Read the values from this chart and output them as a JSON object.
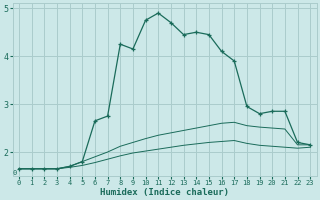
{
  "xlabel": "Humidex (Indice chaleur)",
  "background_color": "#cce8e8",
  "grid_color": "#aacccc",
  "line_color": "#1a6b5a",
  "x_values": [
    0,
    1,
    2,
    3,
    4,
    5,
    6,
    7,
    8,
    9,
    10,
    11,
    12,
    13,
    14,
    15,
    16,
    17,
    18,
    19,
    20,
    21,
    22,
    23
  ],
  "line1_y": [
    1.65,
    1.65,
    1.65,
    1.65,
    1.7,
    1.8,
    2.65,
    2.75,
    4.25,
    4.15,
    4.75,
    4.9,
    4.7,
    4.45,
    4.5,
    4.45,
    4.1,
    3.9,
    2.95,
    2.8,
    2.85,
    2.85,
    2.2,
    2.15
  ],
  "line2_y": [
    1.65,
    1.65,
    1.65,
    1.65,
    1.7,
    1.8,
    1.9,
    2.0,
    2.12,
    2.2,
    2.28,
    2.35,
    2.4,
    2.45,
    2.5,
    2.55,
    2.6,
    2.62,
    2.55,
    2.52,
    2.5,
    2.48,
    2.15,
    2.15
  ],
  "line3_y": [
    1.65,
    1.65,
    1.65,
    1.65,
    1.68,
    1.72,
    1.78,
    1.85,
    1.92,
    1.98,
    2.02,
    2.06,
    2.1,
    2.14,
    2.17,
    2.2,
    2.22,
    2.24,
    2.18,
    2.14,
    2.12,
    2.1,
    2.08,
    2.1
  ],
  "ylim": [
    1.5,
    5.1
  ],
  "xlim": [
    -0.5,
    23.5
  ],
  "yticks": [
    2,
    3,
    4,
    5
  ],
  "xticks": [
    0,
    1,
    2,
    3,
    4,
    5,
    6,
    7,
    8,
    9,
    10,
    11,
    12,
    13,
    14,
    15,
    16,
    17,
    18,
    19,
    20,
    21,
    22,
    23
  ]
}
